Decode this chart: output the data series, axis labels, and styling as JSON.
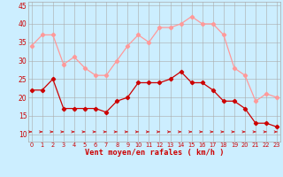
{
  "hours": [
    0,
    1,
    2,
    3,
    4,
    5,
    6,
    7,
    8,
    9,
    10,
    11,
    12,
    13,
    14,
    15,
    16,
    17,
    18,
    19,
    20,
    21,
    22,
    23
  ],
  "wind_mean": [
    22,
    22,
    25,
    17,
    17,
    17,
    17,
    16,
    19,
    20,
    24,
    24,
    24,
    25,
    27,
    24,
    24,
    22,
    19,
    19,
    17,
    13,
    13,
    12
  ],
  "wind_gust": [
    34,
    37,
    37,
    29,
    31,
    28,
    26,
    26,
    30,
    34,
    37,
    35,
    39,
    39,
    40,
    42,
    40,
    40,
    37,
    28,
    26,
    19,
    21,
    20
  ],
  "bg_color": "#cceeff",
  "grid_color": "#aaaaaa",
  "mean_color": "#cc0000",
  "gust_color": "#ff9999",
  "xlabel": "Vent moyen/en rafales ( km/h )",
  "xlabel_color": "#cc0000",
  "tick_color": "#cc0000",
  "ylim": [
    8,
    46
  ],
  "yticks": [
    10,
    15,
    20,
    25,
    30,
    35,
    40,
    45
  ],
  "marker_size": 2.2,
  "linewidth": 0.9
}
